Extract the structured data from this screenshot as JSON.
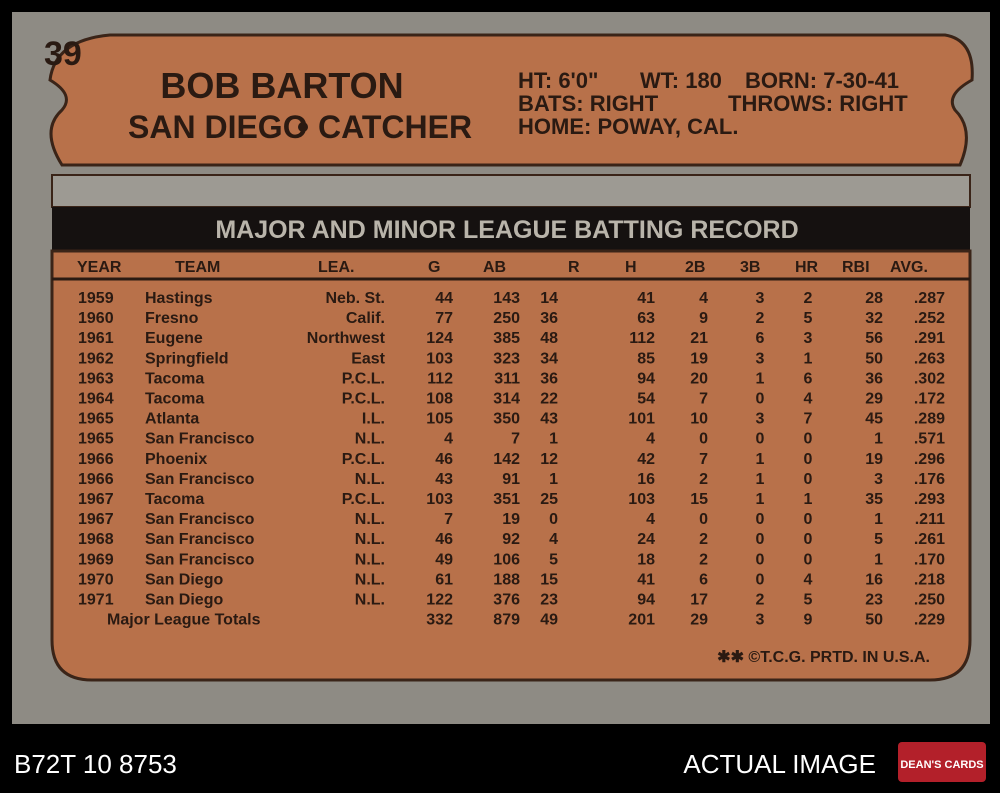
{
  "card": {
    "number": "39",
    "name": "BOB BARTON",
    "team": "SAN DIEGO",
    "position": "CATCHER",
    "bio": {
      "height": "HT: 6'0\"",
      "weight": "WT: 180",
      "born": "BORN: 7-30-41",
      "bats": "BATS: RIGHT",
      "throws": "THROWS: RIGHT",
      "home": "HOME: POWAY, CAL."
    },
    "table": {
      "title": "MAJOR AND MINOR LEAGUE BATTING RECORD",
      "headers": [
        "YEAR",
        "TEAM",
        "LEA.",
        "G",
        "AB",
        "R",
        "H",
        "2B",
        "3B",
        "HR",
        "RBI",
        "AVG."
      ],
      "rows": [
        [
          "1959",
          "Hastings",
          "Neb. St.",
          "44",
          "143",
          "14",
          "41",
          "4",
          "3",
          "2",
          "28",
          ".287"
        ],
        [
          "1960",
          "Fresno",
          "Calif.",
          "77",
          "250",
          "36",
          "63",
          "9",
          "2",
          "5",
          "32",
          ".252"
        ],
        [
          "1961",
          "Eugene",
          "Northwest",
          "124",
          "385",
          "48",
          "112",
          "21",
          "6",
          "3",
          "56",
          ".291"
        ],
        [
          "1962",
          "Springfield",
          "East",
          "103",
          "323",
          "34",
          "85",
          "19",
          "3",
          "1",
          "50",
          ".263"
        ],
        [
          "1963",
          "Tacoma",
          "P.C.L.",
          "112",
          "311",
          "36",
          "94",
          "20",
          "1",
          "6",
          "36",
          ".302"
        ],
        [
          "1964",
          "Tacoma",
          "P.C.L.",
          "108",
          "314",
          "22",
          "54",
          "7",
          "0",
          "4",
          "29",
          ".172"
        ],
        [
          "1965",
          "Atlanta",
          "I.L.",
          "105",
          "350",
          "43",
          "101",
          "10",
          "3",
          "7",
          "45",
          ".289"
        ],
        [
          "1965",
          "San Francisco",
          "N.L.",
          "4",
          "7",
          "1",
          "4",
          "0",
          "0",
          "0",
          "1",
          ".571"
        ],
        [
          "1966",
          "Phoenix",
          "P.C.L.",
          "46",
          "142",
          "12",
          "42",
          "7",
          "1",
          "0",
          "19",
          ".296"
        ],
        [
          "1966",
          "San Francisco",
          "N.L.",
          "43",
          "91",
          "1",
          "16",
          "2",
          "1",
          "0",
          "3",
          ".176"
        ],
        [
          "1967",
          "Tacoma",
          "P.C.L.",
          "103",
          "351",
          "25",
          "103",
          "15",
          "1",
          "1",
          "35",
          ".293"
        ],
        [
          "1967",
          "San Francisco",
          "N.L.",
          "7",
          "19",
          "0",
          "4",
          "0",
          "0",
          "0",
          "1",
          ".211"
        ],
        [
          "1968",
          "San Francisco",
          "N.L.",
          "46",
          "92",
          "4",
          "24",
          "2",
          "0",
          "0",
          "5",
          ".261"
        ],
        [
          "1969",
          "San Francisco",
          "N.L.",
          "49",
          "106",
          "5",
          "18",
          "2",
          "0",
          "0",
          "1",
          ".170"
        ],
        [
          "1970",
          "San Diego",
          "N.L.",
          "61",
          "188",
          "15",
          "41",
          "6",
          "0",
          "4",
          "16",
          ".218"
        ],
        [
          "1971",
          "San Diego",
          "N.L.",
          "122",
          "376",
          "23",
          "94",
          "17",
          "2",
          "5",
          "23",
          ".250"
        ]
      ],
      "totals": [
        "Major League Totals",
        "332",
        "879",
        "49",
        "201",
        "29",
        "3",
        "9",
        "50",
        ".229"
      ]
    },
    "footer": "✱✱ ©T.C.G. PRTD. IN U.S.A."
  },
  "caption": {
    "id": "B72T 10 8753",
    "label": "ACTUAL IMAGE",
    "logo": "DEAN'S CARDS"
  }
}
